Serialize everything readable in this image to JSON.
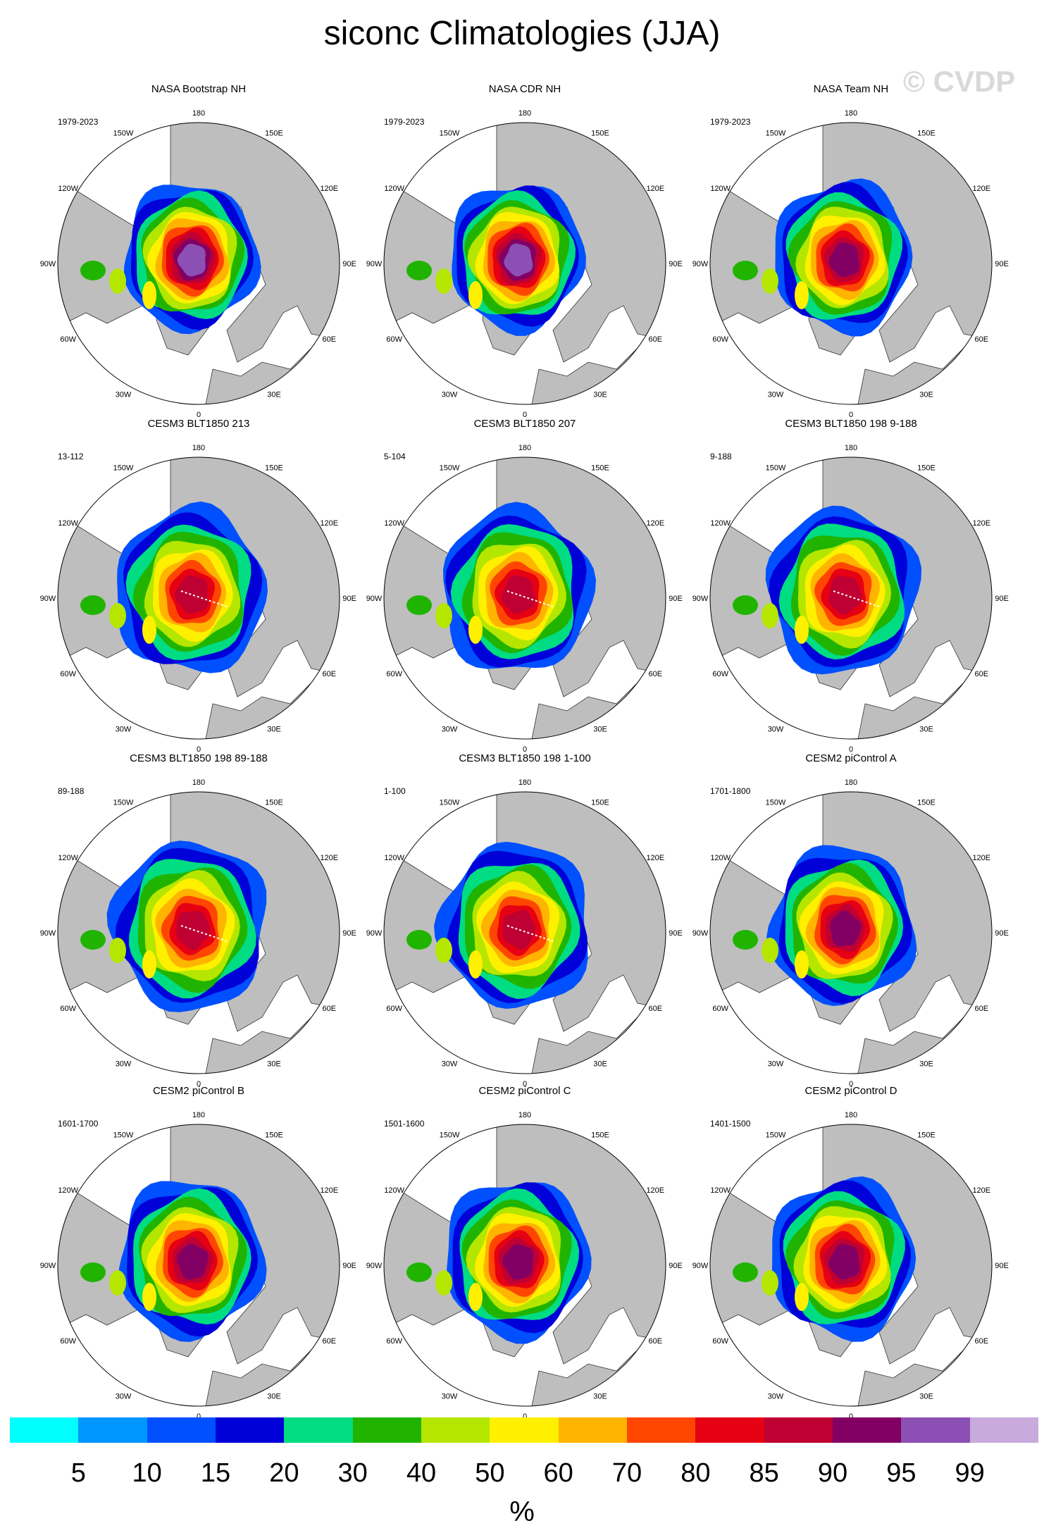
{
  "title": "siconc Climatologies (JJA)",
  "watermark": "© CVDP",
  "palette": [
    "#00ffff",
    "#0096ff",
    "#0050ff",
    "#0000d8",
    "#00dc82",
    "#20b400",
    "#b4e600",
    "#fff000",
    "#ffb400",
    "#ff4600",
    "#e60014",
    "#be0032",
    "#820064",
    "#8c50b4",
    "#c8aadc"
  ],
  "land_color": "#bebebe",
  "ocean_color": "#ffffff",
  "colorbar": {
    "labels": [
      "5",
      "10",
      "15",
      "20",
      "30",
      "40",
      "50",
      "60",
      "70",
      "80",
      "85",
      "90",
      "95",
      "99"
    ],
    "unit": "%"
  },
  "longitude_labels": [
    "180",
    "150E",
    "120E",
    "90E",
    "60E",
    "30E",
    "0",
    "30W",
    "60W",
    "90W",
    "120W",
    "150W"
  ],
  "panels": [
    {
      "title": "NASA Bootstrap NH",
      "period": "1979-2023",
      "center_level": 13,
      "ice_scale": 0.92,
      "dotted_line": false
    },
    {
      "title": "NASA CDR NH",
      "period": "1979-2023",
      "center_level": 13,
      "ice_scale": 0.92,
      "dotted_line": false
    },
    {
      "title": "NASA Team NH",
      "period": "1979-2023",
      "center_level": 12,
      "ice_scale": 0.95,
      "dotted_line": false
    },
    {
      "title": "CESM3 BLT1850 213",
      "period": "13-112",
      "center_level": 11,
      "ice_scale": 1.05,
      "dotted_line": true
    },
    {
      "title": "CESM3 BLT1850 207",
      "period": "5-104",
      "center_level": 11,
      "ice_scale": 1.05,
      "dotted_line": true
    },
    {
      "title": "CESM3 BLT1850 198 9-188",
      "period": "9-188",
      "center_level": 11,
      "ice_scale": 1.05,
      "dotted_line": true
    },
    {
      "title": "CESM3 BLT1850 198 89-188",
      "period": "89-188",
      "center_level": 11,
      "ice_scale": 1.08,
      "dotted_line": true
    },
    {
      "title": "CESM3 BLT1850 198 1-100",
      "period": "1-100",
      "center_level": 11,
      "ice_scale": 1.05,
      "dotted_line": true
    },
    {
      "title": "CESM2 piControl A",
      "period": "1701-1800",
      "center_level": 12,
      "ice_scale": 1.0,
      "dotted_line": false
    },
    {
      "title": "CESM2 piControl B",
      "period": "1601-1700",
      "center_level": 12,
      "ice_scale": 1.0,
      "dotted_line": false
    },
    {
      "title": "CESM2 piControl C",
      "period": "1501-1600",
      "center_level": 12,
      "ice_scale": 1.0,
      "dotted_line": false
    },
    {
      "title": "CESM2 piControl D",
      "period": "1401-1500",
      "center_level": 12,
      "ice_scale": 1.0,
      "dotted_line": false
    }
  ]
}
